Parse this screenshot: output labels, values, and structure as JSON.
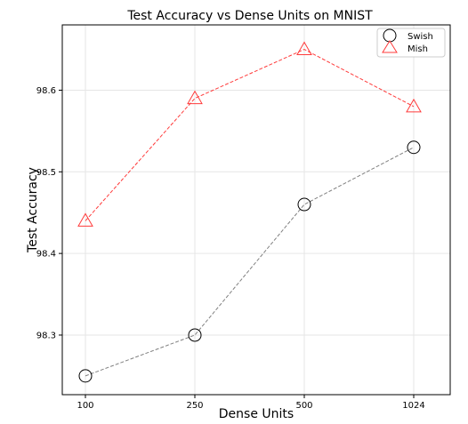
{
  "chart_data": {
    "type": "line",
    "title": "Test Accuracy vs Dense Units on MNIST",
    "xlabel": "Dense Units",
    "ylabel": "Test Accuracy",
    "categories": [
      "100",
      "250",
      "500",
      "1024"
    ],
    "y_ticks": [
      "98.3",
      "98.4",
      "98.5",
      "98.6"
    ],
    "ylim": [
      98.227,
      98.68
    ],
    "grid": true,
    "legend_position": "top-right",
    "series": [
      {
        "name": "Swish",
        "marker": "circle",
        "color": "#808080",
        "marker_color": "#000000",
        "values": [
          98.25,
          98.3,
          98.46,
          98.53
        ]
      },
      {
        "name": "Mish",
        "marker": "triangle",
        "color": "#ff3b3b",
        "marker_color": "#ff3b3b",
        "values": [
          98.44,
          98.59,
          98.65,
          98.58
        ]
      }
    ]
  }
}
